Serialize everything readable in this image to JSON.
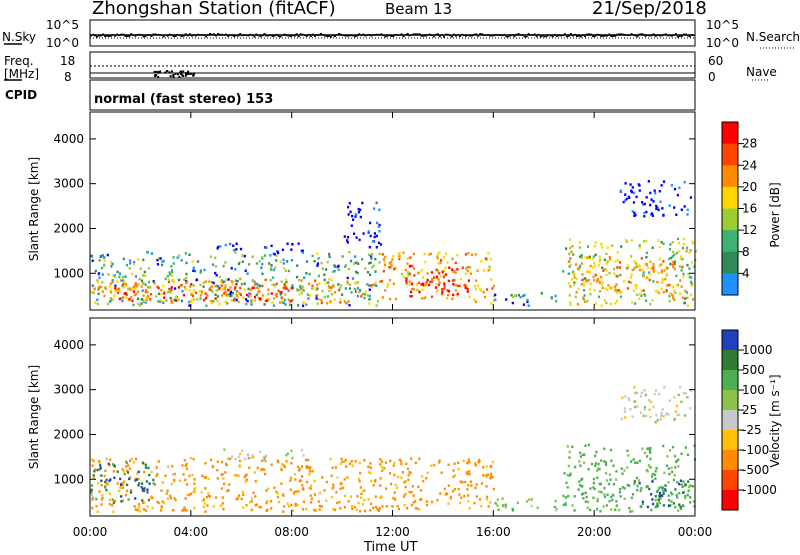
{
  "header": {
    "station": "Zhongshan Station (fitACF)",
    "beam": "Beam 13",
    "date": "21/Sep/2018"
  },
  "panels": {
    "nsky": {
      "left_label": "N.Sky",
      "left_ticks": [
        "10^5",
        "10^0"
      ],
      "right_ticks": [
        "10^5",
        "10^0"
      ],
      "right_label": "N.Search"
    },
    "freq": {
      "left_label_1": "Freq.",
      "left_label_2": "[MHz]",
      "left_ticks": [
        "18",
        "8"
      ],
      "right_ticks": [
        "60",
        "0"
      ],
      "right_label": "Nave"
    },
    "cpid": {
      "label": "CPID",
      "mode": "normal (fast stereo) 153"
    }
  },
  "power_scale": {
    "label": "Power [dB]",
    "ticks": [
      "28",
      "24",
      "20",
      "16",
      "12",
      "8",
      "4"
    ],
    "colors": [
      "#ff0000",
      "#ff4500",
      "#ff8c00",
      "#ffd700",
      "#9acd32",
      "#3cb371",
      "#2e8b57",
      "#1e90ff",
      "#0000ff"
    ]
  },
  "velocity_scale": {
    "label": "Velocity [m s⁻¹]",
    "ticks": [
      "1000",
      "500",
      "100",
      "25",
      "-25",
      "-100",
      "-500",
      "-1000"
    ],
    "colors": [
      "#2040c0",
      "#2e7d32",
      "#4caf50",
      "#8bc34a",
      "#c8c8c8",
      "#ffc107",
      "#ff8c00",
      "#ff4500",
      "#ff0000"
    ]
  },
  "chart_data": [
    {
      "type": "heatmap",
      "title": "",
      "ylabel": "Slant Range [km]",
      "xlabel": "",
      "x_ticks": [
        "00:00",
        "04:00",
        "08:00",
        "12:00",
        "16:00",
        "20:00",
        "00:00"
      ],
      "y_ticks": [
        1000,
        2000,
        3000,
        4000
      ],
      "xlim_hours": [
        0,
        24
      ],
      "ylim": [
        180,
        4600
      ],
      "quantity": "Power [dB]",
      "regions": [
        {
          "t0": 0.0,
          "t1": 11.5,
          "r0": 300,
          "r1": 1500,
          "level": 12
        },
        {
          "t0": 0.0,
          "t1": 11.5,
          "r0": 350,
          "r1": 900,
          "level": 20
        },
        {
          "t0": 0.5,
          "t1": 8.0,
          "r0": 400,
          "r1": 800,
          "level": 26
        },
        {
          "t0": 11.5,
          "t1": 16.0,
          "r0": 350,
          "r1": 1500,
          "level": 20
        },
        {
          "t0": 12.5,
          "t1": 15.0,
          "r0": 500,
          "r1": 1200,
          "level": 30
        },
        {
          "t0": 16.0,
          "t1": 18.5,
          "r0": 300,
          "r1": 600,
          "level": 10
        },
        {
          "t0": 18.7,
          "t1": 24.0,
          "r0": 300,
          "r1": 1800,
          "level": 16
        },
        {
          "t0": 19.0,
          "t1": 23.5,
          "r0": 600,
          "r1": 1400,
          "level": 22
        },
        {
          "t0": 5.0,
          "t1": 8.5,
          "r0": 1450,
          "r1": 1700,
          "level": 6
        },
        {
          "t0": 10.0,
          "t1": 11.5,
          "r0": 1600,
          "r1": 2600,
          "level": 6
        },
        {
          "t0": 21.0,
          "t1": 23.8,
          "r0": 2300,
          "r1": 3100,
          "level": 5
        }
      ]
    },
    {
      "type": "heatmap",
      "title": "",
      "ylabel": "Slant Range [km]",
      "xlabel": "Time UT",
      "x_ticks": [
        "00:00",
        "04:00",
        "08:00",
        "12:00",
        "16:00",
        "20:00",
        "00:00"
      ],
      "y_ticks": [
        1000,
        2000,
        3000,
        4000
      ],
      "xlim_hours": [
        0,
        24
      ],
      "ylim": [
        180,
        4600
      ],
      "quantity": "Velocity [m s⁻¹]",
      "regions": [
        {
          "t0": 0.0,
          "t1": 11.5,
          "r0": 300,
          "r1": 1500,
          "level": -150
        },
        {
          "t0": 0.0,
          "t1": 2.5,
          "r0": 500,
          "r1": 1400,
          "level": 800
        },
        {
          "t0": 11.5,
          "t1": 16.0,
          "r0": 350,
          "r1": 1500,
          "level": -200
        },
        {
          "t0": 16.0,
          "t1": 18.5,
          "r0": 300,
          "r1": 600,
          "level": 80
        },
        {
          "t0": 18.7,
          "t1": 24.0,
          "r0": 300,
          "r1": 1800,
          "level": 200
        },
        {
          "t0": 21.5,
          "t1": 23.8,
          "r0": 400,
          "r1": 1000,
          "level": 900
        },
        {
          "t0": 5.0,
          "t1": 8.5,
          "r0": 1450,
          "r1": 1700,
          "level": 0
        },
        {
          "t0": 21.0,
          "t1": 23.8,
          "r0": 2300,
          "r1": 3100,
          "level": 0
        }
      ]
    }
  ],
  "x_axis_title": "Time UT"
}
